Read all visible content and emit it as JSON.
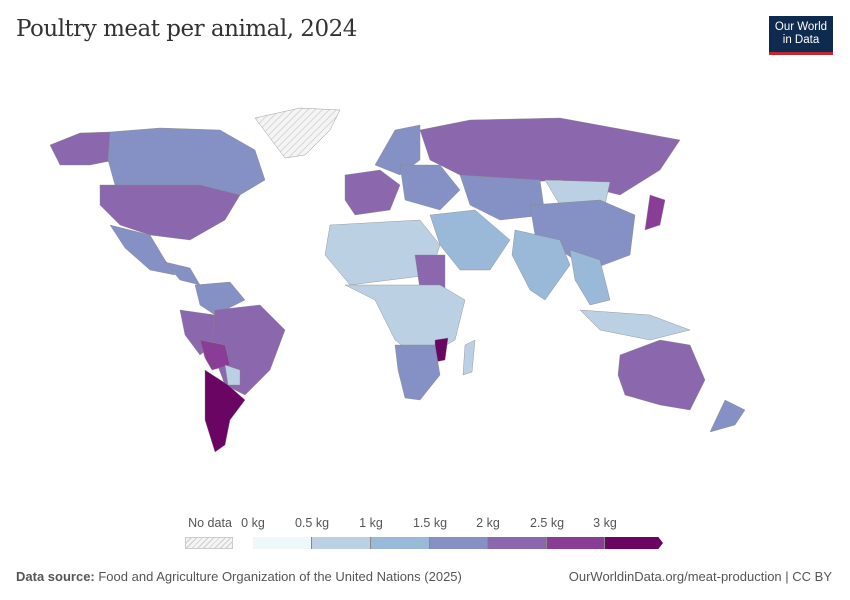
{
  "header": {
    "title": "Poultry meat per animal, 2024",
    "logo_line1": "Our World",
    "logo_line2": "in Data"
  },
  "legend": {
    "no_data_label": "No data",
    "ticks": [
      "0 kg",
      "0.5 kg",
      "1 kg",
      "1.5 kg",
      "2 kg",
      "2.5 kg",
      "3 kg"
    ],
    "bins": [
      {
        "range": "0–0.5 kg",
        "color": "#eef7f9"
      },
      {
        "range": "0.5–1 kg",
        "color": "#bcd0e4"
      },
      {
        "range": "1–1.5 kg",
        "color": "#9ab8d8"
      },
      {
        "range": "1.5–2 kg",
        "color": "#8591c4"
      },
      {
        "range": "2–2.5 kg",
        "color": "#8b67ad"
      },
      {
        "range": "2.5–3 kg",
        "color": "#8a3d97"
      },
      {
        "range": ">3 kg",
        "color": "#6a0564"
      }
    ],
    "no_data_pattern": "hatched-grey"
  },
  "footer": {
    "source_label": "Data source:",
    "source_text": " Food and Agriculture Organization of the United Nations (2025)",
    "link": "OurWorldinData.org/meat-production | CC BY"
  }
}
